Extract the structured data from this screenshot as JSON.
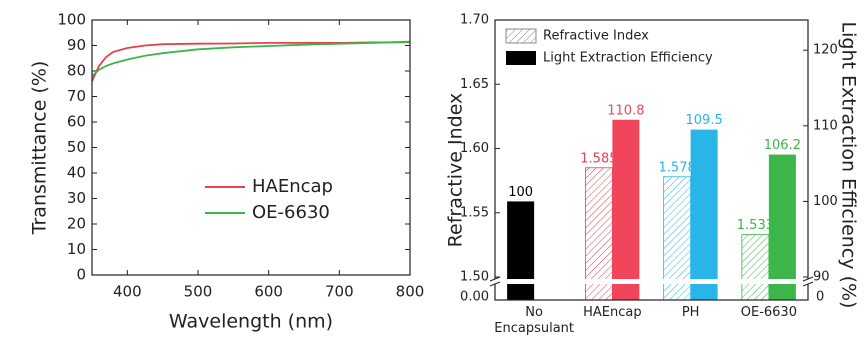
{
  "chart_data": [
    {
      "type": "line",
      "x_label": "Wavelength (nm)",
      "y_label": "Transmittance (%)",
      "x": [
        350,
        360,
        370,
        380,
        400,
        425,
        450,
        500,
        550,
        600,
        650,
        700,
        750,
        800
      ],
      "series": [
        {
          "name": "HAEncap",
          "color": "#e8404f",
          "values": [
            76,
            82,
            85.5,
            87.5,
            89,
            90,
            90.5,
            90.7,
            90.8,
            91,
            91,
            91,
            91.2,
            91.3
          ]
        },
        {
          "name": "OE-6630",
          "color": "#3cb54a",
          "values": [
            78,
            80.5,
            82,
            83,
            84.5,
            86,
            87,
            88.5,
            89.3,
            89.8,
            90.3,
            90.7,
            91,
            91.5
          ]
        }
      ],
      "xlim": [
        350,
        800
      ],
      "xticks": [
        400,
        500,
        600,
        700,
        800
      ],
      "ylim": [
        0,
        100
      ],
      "yticks": [
        0,
        10,
        20,
        30,
        40,
        50,
        60,
        70,
        80,
        90,
        100
      ],
      "legend": "center"
    },
    {
      "type": "bar",
      "y_label": "Refractive Index",
      "y2_label": "Light Extraction Efficiency (%)",
      "categories": [
        "No Encapsulant",
        "HAEncap",
        "PH",
        "OE-6630"
      ],
      "series": [
        {
          "name": "Refractive Index",
          "color": "#888888",
          "pattern": "hatch",
          "colors": [
            "#888888",
            "#e8404f",
            "#29b5e8",
            "#3cb54a"
          ],
          "values": [
            null,
            1.585,
            1.578,
            1.533
          ]
        },
        {
          "name": "Light Extraction Efficiency",
          "color": "#000000",
          "axis": "y2",
          "colors": [
            "#000000",
            "#f0455a",
            "#29b5e8",
            "#3cb54a"
          ],
          "values": [
            100,
            110.8,
            109.5,
            106.2
          ]
        }
      ],
      "ylim": [
        1.5,
        1.7
      ],
      "yticks": [
        {
          "value": 1.5,
          "label": "1.50"
        },
        {
          "value": 1.55,
          "label": "1.55"
        },
        {
          "value": 1.6,
          "label": "1.60"
        },
        {
          "value": 1.65,
          "label": "1.65"
        },
        {
          "value": 1.7,
          "label": "1.70"
        }
      ],
      "yticks_below_break": [
        {
          "value": 0,
          "label": "0.00"
        }
      ],
      "y2lim": [
        90,
        124
      ],
      "y2ticks": [
        90,
        100,
        110,
        120
      ],
      "y2ticks_below_break": [
        0
      ],
      "legend": "upper left"
    }
  ]
}
